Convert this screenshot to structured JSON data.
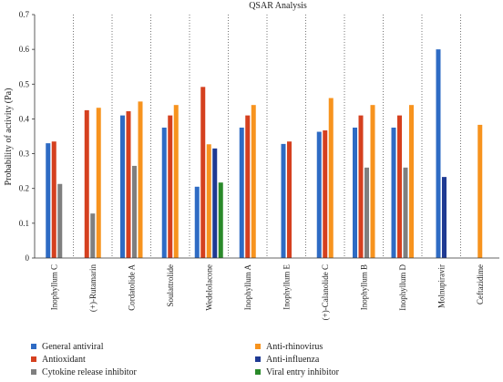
{
  "chart_data": {
    "type": "bar",
    "title": "QSAR Analysis",
    "xlabel": "",
    "ylabel": "Probability of activity (Pa)",
    "ylim": [
      0,
      0.7
    ],
    "yticks": [
      "0",
      "0.1",
      "0.2",
      "0.3",
      "0.4",
      "0.5",
      "0.6",
      "0.7"
    ],
    "categories": [
      "Inophyllum C",
      "(+)-Rutamarin",
      "Cordatolide A",
      "Soulattrolide",
      "Wedelolacone",
      "Inophyllum A",
      "Inophyllum E",
      "(+)-Calanolide C",
      "Inophyllum B",
      "Inophyllum D",
      "Molnupiravir",
      "Ceftazidime"
    ],
    "series": [
      {
        "name": "General antiviral",
        "color": "#2e6bc4",
        "values": [
          0.33,
          null,
          0.41,
          0.375,
          0.205,
          0.375,
          0.328,
          0.363,
          0.375,
          0.375,
          0.6,
          null
        ]
      },
      {
        "name": "Antioxidant",
        "color": "#d5401f",
        "values": [
          0.335,
          0.425,
          0.422,
          0.41,
          0.492,
          0.41,
          0.335,
          0.367,
          0.41,
          0.41,
          null,
          null
        ]
      },
      {
        "name": "Cytokine release inhibitor",
        "color": "#7f7f7f",
        "values": [
          0.213,
          0.128,
          0.265,
          null,
          null,
          null,
          null,
          null,
          0.26,
          0.26,
          null,
          null
        ]
      },
      {
        "name": "Anti-rhinovirus",
        "color": "#f7931e",
        "values": [
          null,
          0.432,
          0.45,
          0.44,
          0.327,
          0.44,
          null,
          0.46,
          0.44,
          0.44,
          null,
          0.383
        ]
      },
      {
        "name": "Anti-influenza",
        "color": "#1f3a93",
        "values": [
          null,
          null,
          null,
          null,
          0.315,
          null,
          null,
          null,
          null,
          null,
          0.233,
          null
        ]
      },
      {
        "name": "Viral entry inhibitor",
        "color": "#2a8a2a",
        "values": [
          null,
          null,
          null,
          null,
          0.217,
          null,
          null,
          null,
          null,
          null,
          null,
          null
        ]
      }
    ],
    "grid": "vertical dotted separators between categories",
    "legend": "bottom, two columns"
  }
}
